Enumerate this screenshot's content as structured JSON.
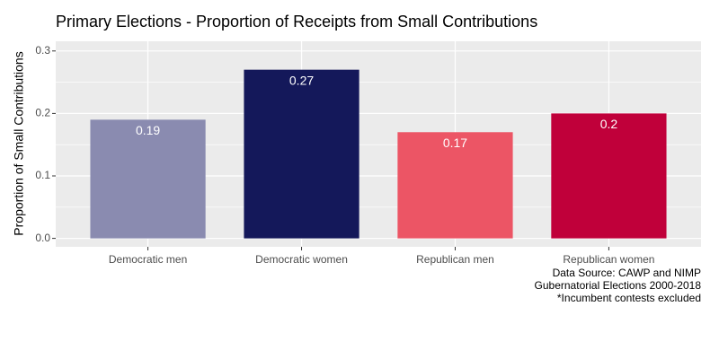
{
  "chart_data": {
    "type": "bar",
    "title": "Primary Elections - Proportion of Receipts from Small Contributions",
    "y_label": "Proportion of Small Contributions",
    "categories": [
      "Democratic men",
      "Democratic women",
      "Republican men",
      "Republican women"
    ],
    "values": [
      0.19,
      0.27,
      0.17,
      0.2
    ],
    "colors": [
      "#8a8bb0",
      "#14185a",
      "#ec5565",
      "#c0003a"
    ],
    "ylim": [
      -0.0135,
      0.3155
    ],
    "yticks": [
      {
        "value": 0,
        "label": "0.0"
      },
      0.1,
      0.2,
      0.3
    ],
    "grid": true,
    "caption": [
      "Data Source: CAWP and NIMP",
      "Gubernatorial Elections 2000-2018",
      "*Incumbent contests excluded"
    ]
  }
}
